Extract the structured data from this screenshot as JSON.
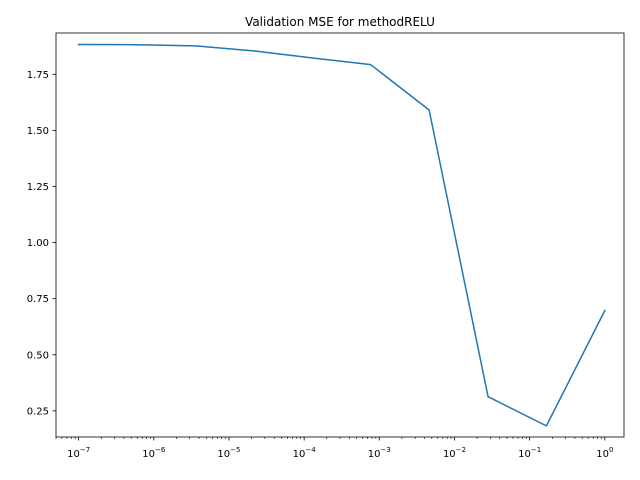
{
  "chart_data": {
    "type": "line",
    "title": "Validation MSE for methodRELU",
    "xlabel": "",
    "ylabel": "",
    "x_scale": "log",
    "xlim": [
      5e-08,
      1.8
    ],
    "ylim": [
      0.1335,
      1.9342
    ],
    "x_ticks": [
      1e-07,
      1e-06,
      1e-05,
      0.0001,
      0.001,
      0.01,
      0.1,
      1
    ],
    "x_tick_labels": [
      {
        "base": "10",
        "exp": "−7"
      },
      {
        "base": "10",
        "exp": "−6"
      },
      {
        "base": "10",
        "exp": "−5"
      },
      {
        "base": "10",
        "exp": "−4"
      },
      {
        "base": "10",
        "exp": "−3"
      },
      {
        "base": "10",
        "exp": "−2"
      },
      {
        "base": "10",
        "exp": "−1"
      },
      {
        "base": "10",
        "exp": "0"
      }
    ],
    "y_ticks": [
      0.25,
      0.5,
      0.75,
      1.0,
      1.25,
      1.5,
      1.75
    ],
    "y_tick_labels": [
      "0.25",
      "0.50",
      "0.75",
      "1.00",
      "1.25",
      "1.50",
      "1.75"
    ],
    "grid": false,
    "series": [
      {
        "color": "#1f77b4",
        "x": [
          1e-07,
          6e-07,
          3.6e-06,
          2.2e-05,
          0.00013,
          0.00077,
          0.0046,
          0.028,
          0.167,
          1.0
        ],
        "y": [
          1.883,
          1.882,
          1.877,
          1.854,
          1.823,
          1.793,
          1.591,
          0.313,
          0.183,
          0.697
        ]
      }
    ]
  }
}
